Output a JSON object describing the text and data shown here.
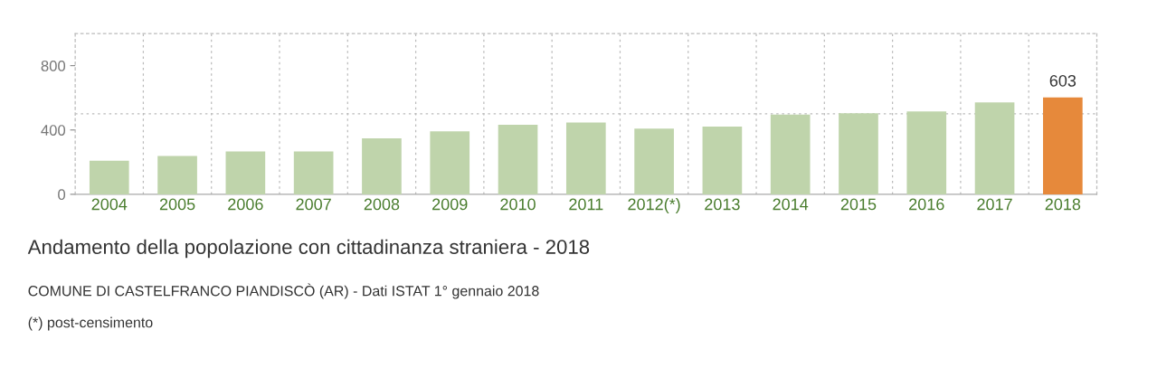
{
  "chart_data": {
    "type": "bar",
    "title": "Andamento della popolazione con cittadinanza straniera - 2018",
    "subtitle": "COMUNE DI CASTELFRANCO PIANDISCÒ (AR) - Dati ISTAT 1° gennaio 2018",
    "annotations": [
      "(*) post-censimento"
    ],
    "categories": [
      "2004",
      "2005",
      "2006",
      "2007",
      "2008",
      "2009",
      "2010",
      "2011",
      "2012(*)",
      "2013",
      "2014",
      "2015",
      "2016",
      "2017",
      "2018"
    ],
    "values": [
      209,
      238,
      267,
      267,
      348,
      392,
      432,
      447,
      409,
      421,
      496,
      504,
      515,
      572,
      603
    ],
    "colors": [
      "#bfd4ab",
      "#bfd4ab",
      "#bfd4ab",
      "#bfd4ab",
      "#bfd4ab",
      "#bfd4ab",
      "#bfd4ab",
      "#bfd4ab",
      "#bfd4ab",
      "#bfd4ab",
      "#bfd4ab",
      "#bfd4ab",
      "#bfd4ab",
      "#bfd4ab",
      "#e6893b"
    ],
    "value_labels": [
      null,
      null,
      null,
      null,
      null,
      null,
      null,
      null,
      null,
      null,
      null,
      null,
      null,
      null,
      "603"
    ],
    "ylim": [
      0,
      1000
    ],
    "yticks": [
      0,
      400,
      800
    ],
    "grid": "x",
    "ref_lines": [
      {
        "axis": "y",
        "value": 500,
        "color": "#bbbbbb",
        "line_style": "dashed"
      }
    ],
    "legend": false
  }
}
